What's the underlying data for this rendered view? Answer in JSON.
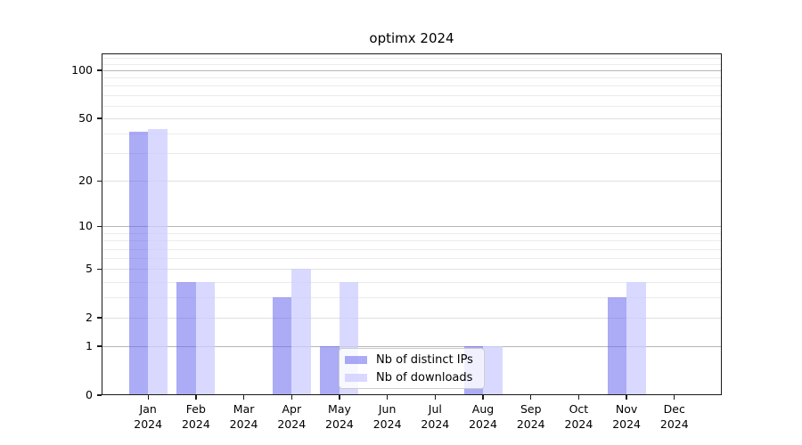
{
  "chart_data": {
    "type": "bar",
    "title": "optimx 2024",
    "x": {
      "months": [
        "Jan",
        "Feb",
        "Mar",
        "Apr",
        "May",
        "Jun",
        "Jul",
        "Aug",
        "Sep",
        "Oct",
        "Nov",
        "Dec"
      ],
      "year": "2024"
    },
    "series": [
      {
        "name": "Nb of distinct IPs",
        "color": "#6666ee",
        "alpha": 0.55,
        "values": [
          41,
          4,
          0,
          3,
          1,
          0,
          0,
          1,
          0,
          0,
          3,
          0
        ]
      },
      {
        "name": "Nb of downloads",
        "color": "#ccccff",
        "alpha": 0.75,
        "values": [
          43,
          4,
          0,
          5,
          4,
          0,
          0,
          1,
          0,
          0,
          4,
          0
        ]
      }
    ],
    "y_axis": {
      "scale": "log1p",
      "tick_values": [
        0,
        1,
        2,
        5,
        10,
        20,
        50,
        100
      ],
      "decade_lines": [
        1,
        10,
        100
      ],
      "minor_lines": [
        3,
        4,
        6,
        7,
        8,
        9,
        30,
        40,
        60,
        70,
        80,
        90,
        110,
        120
      ],
      "ymax": 128
    },
    "legend_position": "lower center",
    "colors": {
      "grid_decade": "#b6b6b6",
      "grid_labeled": "#e0e0e0",
      "grid_minor": "#ebebeb",
      "spine": "#1a1a1a",
      "background": "#ffffff",
      "legend_border": "#cccccc",
      "text": "#000000"
    }
  }
}
